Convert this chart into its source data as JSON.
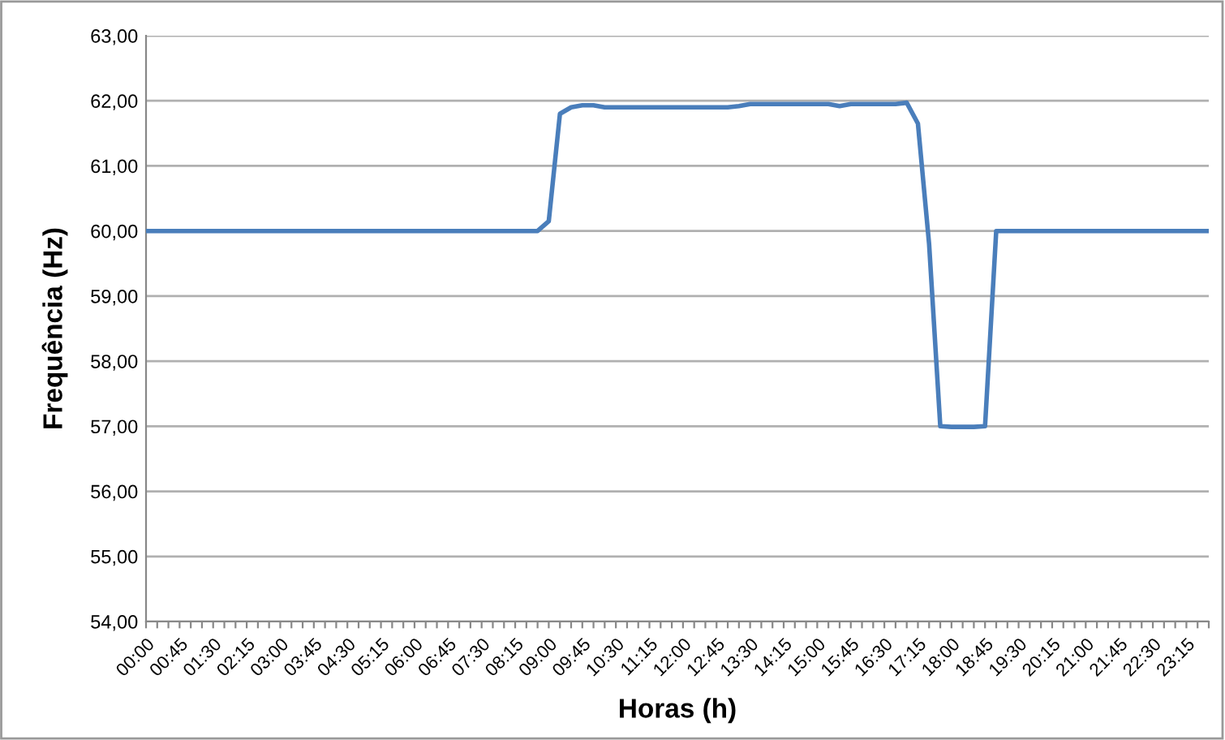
{
  "chart_data": {
    "type": "line",
    "xlabel": "Horas (h)",
    "ylabel": "Frequência (Hz)",
    "categories": [
      "00:00",
      null,
      null,
      "00:45",
      null,
      null,
      "01:30",
      null,
      null,
      "02:15",
      null,
      null,
      "03:00",
      null,
      null,
      "03:45",
      null,
      null,
      "04:30",
      null,
      null,
      "05:15",
      null,
      null,
      "06:00",
      null,
      null,
      "06:45",
      null,
      null,
      "07:30",
      null,
      null,
      "08:15",
      null,
      null,
      "09:00",
      null,
      null,
      "09:45",
      null,
      null,
      "10:30",
      null,
      null,
      "11:15",
      null,
      null,
      "12:00",
      null,
      null,
      "12:45",
      null,
      null,
      "13:30",
      null,
      null,
      "14:15",
      null,
      null,
      "15:00",
      null,
      null,
      "15:45",
      null,
      null,
      "16:30",
      null,
      null,
      "17:15",
      null,
      null,
      "18:00",
      null,
      null,
      "18:45",
      null,
      null,
      "19:30",
      null,
      null,
      "20:15",
      null,
      null,
      "21:00",
      null,
      null,
      "21:45",
      null,
      null,
      "22:30",
      null,
      null,
      "23:15",
      null,
      null
    ],
    "series": [
      {
        "color": "#4a7ebb",
        "values": [
          60,
          60,
          60,
          60,
          60,
          60,
          60,
          60,
          60,
          60,
          60,
          60,
          60,
          60,
          60,
          60,
          60,
          60,
          60,
          60,
          60,
          60,
          60,
          60,
          60,
          60,
          60,
          60,
          60,
          60,
          60,
          60,
          60,
          60,
          60,
          60,
          60.15,
          61.8,
          61.9,
          61.93,
          61.93,
          61.9,
          61.9,
          61.9,
          61.9,
          61.9,
          61.9,
          61.9,
          61.9,
          61.9,
          61.9,
          61.9,
          61.9,
          61.92,
          61.95,
          61.95,
          61.95,
          61.95,
          61.95,
          61.95,
          61.95,
          61.95,
          61.92,
          61.95,
          61.95,
          61.95,
          61.95,
          61.95,
          61.97,
          61.65,
          59.8,
          57.0,
          56.99,
          56.99,
          56.99,
          57.0,
          60,
          60,
          60,
          60,
          60,
          60,
          60,
          60,
          60,
          60,
          60,
          60,
          60,
          60,
          60,
          60,
          60,
          60,
          60,
          60
        ]
      }
    ],
    "ylim": [
      54,
      63
    ],
    "yticks": [
      {
        "value": 54,
        "label": "54,00"
      },
      {
        "value": 55,
        "label": "55,00"
      },
      {
        "value": 56,
        "label": "56,00"
      },
      {
        "value": 57,
        "label": "57,00"
      },
      {
        "value": 58,
        "label": "58,00"
      },
      {
        "value": 59,
        "label": "59,00"
      },
      {
        "value": 60,
        "label": "60,00"
      },
      {
        "value": 61,
        "label": "61,00"
      },
      {
        "value": 62,
        "label": "62,00"
      },
      {
        "value": 63,
        "label": "63,00"
      }
    ],
    "grid": "y",
    "legend": false,
    "marker": "none",
    "line_style": "solid"
  }
}
